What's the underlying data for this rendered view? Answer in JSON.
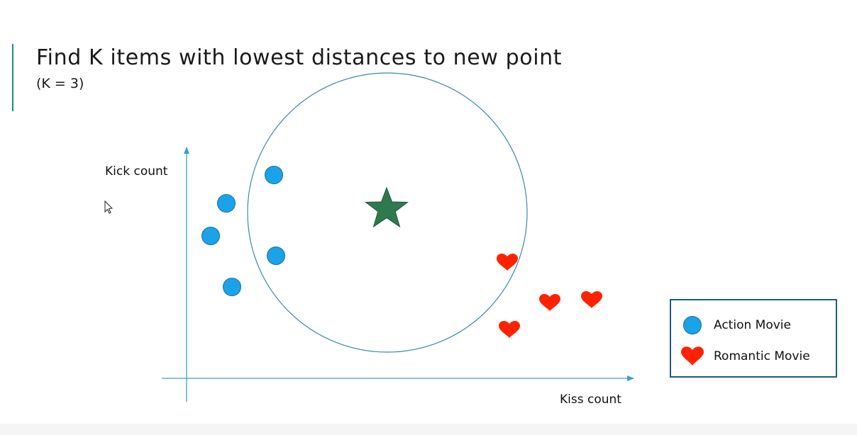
{
  "slide": {
    "title": "Find K items with lowest distances to new point",
    "subtitle": "(K = 3)"
  },
  "axes": {
    "y_label": "Kick count",
    "x_label": "Kiss count"
  },
  "legend": {
    "items": [
      {
        "label": "Action Movie",
        "marker": "circle",
        "color": "#1aa3e8"
      },
      {
        "label": "Romantic Movie",
        "marker": "heart",
        "color": "#ff2200"
      }
    ]
  },
  "new_point": {
    "marker": "star",
    "color": "#2e7a4e"
  },
  "colors": {
    "accent": "#1c8a8a",
    "axis": "#3aa0c8",
    "circle_outline": "#3b8aa6",
    "legend_border": "#1e5c7a"
  },
  "icons": [
    "cursor-icon",
    "star-icon",
    "circle-marker",
    "heart-icon"
  ]
}
